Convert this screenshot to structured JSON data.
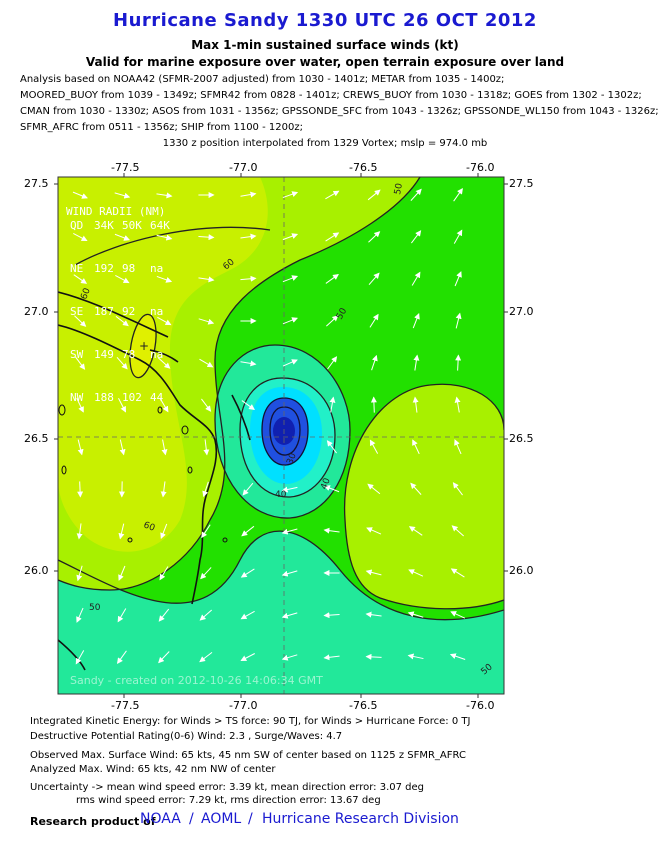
{
  "header": {
    "title": "Hurricane Sandy 1330 UTC 26 OCT 2012",
    "subtitle1": "Max 1-min sustained surface winds (kt)",
    "subtitle2": "Valid for marine exposure over water, open terrain exposure over land"
  },
  "analysis_lines": [
    "Analysis based on NOAA42 (SFMR-2007 adjusted) from 1030 - 1401z; METAR from 1035 - 1400z;",
    "MOORED_BUOY from 1039 - 1349z; SFMR42 from 0828 - 1401z; CREWS_BUOY from 1030 - 1318z; GOES from 1302 - 1302z;",
    "CMAN from 1030 - 1330z; ASOS from 1031 - 1356z; GPSSONDE_SFC from 1043 - 1326z; GPSSONDE_WL150 from 1043 - 1326z;",
    "SFMR_AFRC from 0511 - 1356z; SHIP from 1100 - 1200z;"
  ],
  "position_line": "1330 z position interpolated from 1329 Vortex; mslp = 974.0 mb",
  "map": {
    "lon_ticks": [
      "-77.5",
      "-77.0",
      "-76.5",
      "-76.0"
    ],
    "lat_ticks": [
      "27.5",
      "27.0",
      "26.5",
      "26.0"
    ],
    "contour_labels": [
      "60",
      "60",
      "60",
      "50",
      "50",
      "50",
      "50",
      "40",
      "40",
      "30"
    ],
    "colors": {
      "land_yellow": "#c8f000",
      "band_60": "#a8f000",
      "band_50": "#22e000",
      "band_40": "#22e89a",
      "band_30": "#22f0c8",
      "core_cyan": "#00e0ff",
      "core_blue": "#2050e0",
      "eye": "#1020b0",
      "hi_yellow": "#e0f000"
    },
    "wind_radii": {
      "title": "WIND RADII (NM)",
      "header": [
        "QD",
        "34K",
        "50K",
        "64K"
      ],
      "rows": [
        [
          "NE",
          "192",
          "98",
          "na"
        ],
        [
          "SE",
          "187",
          "92",
          "na"
        ],
        [
          "SW",
          "149",
          "78",
          "na"
        ],
        [
          "NW",
          "188",
          "102",
          "44"
        ]
      ]
    },
    "watermark": "Sandy  -  created on 2012-10-26 14:06:34 GMT"
  },
  "info_lines": [
    "Integrated Kinetic Energy: for Winds > TS force: 90 TJ, for Winds > Hurricane Force: 0 TJ",
    "Destructive Potential Rating(0-6)  Wind: 2.3 , Surge/Waves: 4.7",
    "Observed Max. Surface Wind: 65 kts, 45 nm SW of center based on 1125 z SFMR_AFRC",
    "Analyzed Max. Wind: 65 kts, 42 nm  NW of center",
    "Uncertainty -> mean wind speed error: 3.39 kt, mean direction error: 3.07 deg",
    "rms wind speed error: 7.29 kt, rms direction error: 13.67 deg"
  ],
  "footer": {
    "prefix": "Research product of",
    "link1": "NOAA",
    "sep1": "/",
    "link2": "AOML",
    "sep2": "/",
    "link3": "Hurricane Research Division"
  }
}
